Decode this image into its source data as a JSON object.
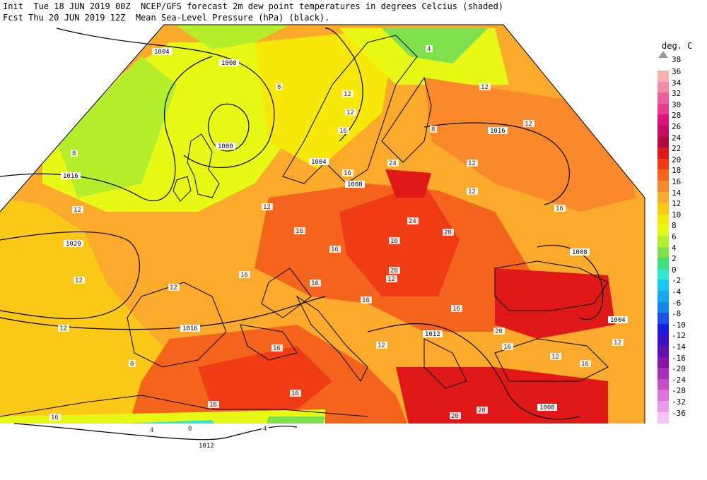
{
  "header": {
    "line1": "Init  Tue 18 JUN 2019 00Z  NCEP/GFS forecast 2m dew point temperatures in degrees Celcius (shaded)",
    "line2": "Fcst Thu 20 JUN 2019 12Z  Mean Sea-Level Pressure (hPa) (black)."
  },
  "legend": {
    "title": "deg. C",
    "top_label": "38",
    "bins": [
      {
        "label": "36",
        "color": "#f7b2b2"
      },
      {
        "label": "34",
        "color": "#f48ca8"
      },
      {
        "label": "32",
        "color": "#ef5c9b"
      },
      {
        "label": "30",
        "color": "#e83c8c"
      },
      {
        "label": "28",
        "color": "#e0127e"
      },
      {
        "label": "26",
        "color": "#c80c62"
      },
      {
        "label": "24",
        "color": "#b00a3c"
      },
      {
        "label": "22",
        "color": "#e01818"
      },
      {
        "label": "20",
        "color": "#f03c14"
      },
      {
        "label": "18",
        "color": "#f4641c"
      },
      {
        "label": "16",
        "color": "#f8882a"
      },
      {
        "label": "14",
        "color": "#fbaa2c"
      },
      {
        "label": "12",
        "color": "#fcc818"
      },
      {
        "label": "10",
        "color": "#f8e80a"
      },
      {
        "label": "8",
        "color": "#e6f814"
      },
      {
        "label": "6",
        "color": "#b4ee2a"
      },
      {
        "label": "4",
        "color": "#7ee04a"
      },
      {
        "label": "2",
        "color": "#3ee07c"
      },
      {
        "label": "0",
        "color": "#2eeacc"
      },
      {
        "label": "-2",
        "color": "#18c8f4"
      },
      {
        "label": "-4",
        "color": "#14a8ee"
      },
      {
        "label": "-6",
        "color": "#1488e8"
      },
      {
        "label": "-8",
        "color": "#1c50e8"
      },
      {
        "label": "-10",
        "color": "#1c1ce0"
      },
      {
        "label": "-12",
        "color": "#3c10c8"
      },
      {
        "label": "-14",
        "color": "#6010b4"
      },
      {
        "label": "-16",
        "color": "#8814a8"
      },
      {
        "label": "-20",
        "color": "#a830b8"
      },
      {
        "label": "-24",
        "color": "#c84cc8"
      },
      {
        "label": "-28",
        "color": "#dc74dc"
      },
      {
        "label": "-32",
        "color": "#ec9cec"
      },
      {
        "label": "-36",
        "color": "#f8c4f8"
      }
    ]
  },
  "map": {
    "isobar_labels": [
      "1004",
      "1008",
      "1004",
      "1000",
      "1004",
      "1008",
      "1016",
      "1016",
      "1020",
      "1016",
      "1008",
      "1004",
      "1012",
      "1008",
      "1012"
    ],
    "dewpoint_labels": [
      "4",
      "8",
      "12",
      "12",
      "16",
      "12",
      "16",
      "12",
      "12",
      "16",
      "16",
      "16",
      "12",
      "12",
      "16",
      "12",
      "20",
      "24",
      "16",
      "20",
      "12",
      "16",
      "16",
      "8",
      "12",
      "16",
      "12",
      "16",
      "12",
      "16",
      "12",
      "16",
      "20",
      "20",
      "24",
      "12",
      "16",
      "4",
      "0",
      "4",
      "16",
      "20",
      "16",
      "8",
      "12",
      "8"
    ]
  }
}
